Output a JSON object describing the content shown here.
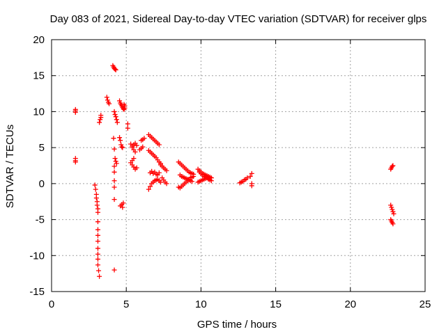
{
  "chart_data": {
    "type": "scatter",
    "title": "Day 083 of 2021, Sidereal Day-to-day VTEC variation (SDTVAR) for receiver glps",
    "xlabel": "GPS time / hours",
    "ylabel": "SDTVAR / TECUs",
    "xlim": [
      0,
      25
    ],
    "ylim": [
      -15,
      20
    ],
    "xticks": [
      0,
      5,
      10,
      15,
      20,
      25
    ],
    "yticks": [
      -15,
      -10,
      -5,
      0,
      5,
      10,
      15,
      20
    ],
    "grid": true,
    "marker": "+",
    "colors": {
      "series": "#ff0000",
      "grid": "#a0a0a0",
      "axis": "#000000"
    },
    "series": [
      {
        "name": "SDTVAR",
        "x": [
          1.6,
          1.6,
          1.6,
          1.6,
          1.6,
          1.6,
          2.9,
          2.95,
          3.0,
          3.0,
          3.05,
          3.05,
          3.1,
          3.1,
          3.1,
          3.1,
          3.1,
          3.1,
          3.1,
          3.1,
          3.1,
          3.1,
          3.15,
          3.2,
          3.2,
          3.25,
          3.3,
          3.3,
          3.7,
          3.75,
          3.8,
          3.85,
          4.1,
          4.15,
          4.2,
          4.25,
          4.3,
          4.2,
          4.25,
          4.3,
          4.35,
          4.4,
          4.15,
          4.2,
          4.25,
          4.3,
          4.35,
          4.2,
          4.2,
          4.2,
          4.2,
          4.2,
          4.2,
          4.55,
          4.6,
          4.65,
          4.7,
          4.75,
          4.8,
          4.85,
          4.9,
          4.9,
          4.85,
          4.55,
          4.6,
          4.65,
          4.7,
          4.75,
          4.6,
          4.7,
          4.8,
          4.75,
          5.1,
          5.1,
          5.3,
          5.4,
          5.5,
          5.6,
          5.7,
          5.5,
          5.4,
          5.3,
          5.4,
          5.5,
          5.6,
          5.7,
          5.6,
          5.5,
          5.4,
          5.9,
          6.0,
          6.1,
          6.2,
          6.0,
          6.1,
          6.5,
          6.6,
          6.7,
          6.8,
          6.9,
          7.0,
          7.1,
          7.2,
          6.5,
          6.6,
          6.7,
          6.8,
          6.9,
          7.0,
          7.1,
          7.2,
          7.3,
          6.6,
          6.7,
          6.8,
          6.9,
          7.0,
          7.1,
          7.2,
          6.5,
          6.6,
          6.7,
          6.8,
          6.9,
          7.0,
          7.1,
          7.2,
          7.3,
          7.3,
          7.4,
          7.5,
          7.6,
          7.7,
          7.4,
          7.5,
          7.6,
          7.7,
          8.5,
          8.6,
          8.7,
          8.8,
          8.9,
          9.0,
          9.1,
          9.2,
          9.3,
          9.4,
          9.5,
          8.5,
          8.6,
          8.7,
          8.8,
          8.9,
          9.0,
          9.1,
          9.2,
          9.3,
          9.4,
          9.5,
          8.6,
          8.7,
          8.8,
          8.9,
          9.0,
          9.1,
          9.2,
          9.3,
          9.4,
          9.8,
          9.9,
          10.0,
          10.1,
          10.2,
          10.3,
          10.4,
          10.5,
          10.6,
          10.7,
          9.8,
          9.9,
          10.0,
          10.1,
          10.2,
          10.3,
          10.4,
          10.5,
          10.6,
          10.7,
          9.9,
          10.0,
          10.1,
          10.2,
          10.3,
          10.4,
          10.5,
          12.6,
          12.7,
          12.8,
          12.9,
          13.0,
          13.1,
          13.3,
          13.4,
          13.4,
          13.4,
          22.7,
          22.75,
          22.8,
          22.85,
          22.7,
          22.75,
          22.8,
          22.85,
          22.9,
          22.7,
          22.75,
          22.8,
          22.85
        ],
        "y": [
          10.3,
          10.1,
          9.9,
          3.5,
          3.2,
          3.0,
          -0.2,
          -0.8,
          -1.5,
          -2.0,
          -2.5,
          -3.0,
          -3.5,
          -4.0,
          -5.3,
          -6.4,
          -7.2,
          -8.0,
          -9.0,
          -9.8,
          -10.5,
          -11.3,
          -12.1,
          -12.9,
          8.5,
          8.9,
          9.2,
          9.5,
          12.0,
          11.6,
          11.3,
          11.1,
          16.4,
          16.2,
          16.0,
          15.9,
          15.8,
          10.0,
          9.6,
          9.3,
          8.9,
          8.5,
          6.3,
          4.8,
          3.5,
          3.1,
          2.8,
          2.4,
          1.6,
          0.4,
          -0.5,
          -2.2,
          -12.0,
          11.5,
          11.2,
          11.0,
          10.8,
          10.6,
          10.4,
          10.3,
          10.5,
          10.8,
          11.0,
          6.4,
          6.0,
          5.4,
          5.1,
          5.0,
          -3.1,
          -2.9,
          -2.7,
          -3.3,
          8.3,
          7.7,
          5.5,
          5.2,
          5.4,
          5.6,
          5.3,
          3.5,
          3.2,
          2.9,
          2.6,
          2.3,
          2.0,
          2.2,
          4.4,
          4.7,
          5.0,
          4.7,
          4.9,
          5.1,
          6.3,
          6.0,
          6.1,
          6.8,
          6.6,
          6.4,
          6.2,
          6.0,
          5.8,
          5.6,
          5.4,
          4.6,
          4.4,
          4.2,
          4.0,
          3.8,
          3.6,
          3.3,
          3.0,
          2.8,
          1.5,
          1.7,
          1.4,
          1.6,
          1.3,
          1.2,
          1.5,
          -0.8,
          -0.4,
          0.0,
          0.2,
          0.4,
          0.5,
          0.6,
          0.4,
          0.2,
          2.6,
          2.4,
          2.2,
          2.0,
          1.8,
          0.8,
          0.5,
          0.2,
          0.0,
          3.0,
          2.8,
          2.6,
          2.4,
          2.2,
          2.0,
          1.8,
          1.6,
          1.5,
          1.4,
          1.3,
          -0.5,
          -0.6,
          -0.4,
          -0.2,
          0.0,
          0.2,
          0.4,
          0.6,
          0.8,
          0.9,
          1.0,
          1.2,
          1.0,
          0.9,
          0.8,
          0.7,
          0.6,
          0.5,
          0.4,
          0.3,
          2.0,
          1.8,
          1.6,
          1.4,
          1.3,
          1.2,
          1.1,
          1.0,
          0.9,
          0.8,
          0.2,
          0.3,
          0.4,
          0.5,
          0.6,
          0.7,
          0.8,
          0.6,
          0.5,
          0.4,
          1.6,
          1.4,
          1.2,
          1.0,
          0.9,
          0.8,
          0.7,
          0.1,
          0.2,
          0.3,
          0.5,
          0.6,
          0.8,
          1.0,
          1.4,
          0.0,
          -0.3,
          2.0,
          2.2,
          2.4,
          2.5,
          -3.0,
          -3.3,
          -3.6,
          -3.9,
          -4.2,
          -5.0,
          -5.2,
          -5.4,
          -5.6
        ]
      }
    ]
  }
}
